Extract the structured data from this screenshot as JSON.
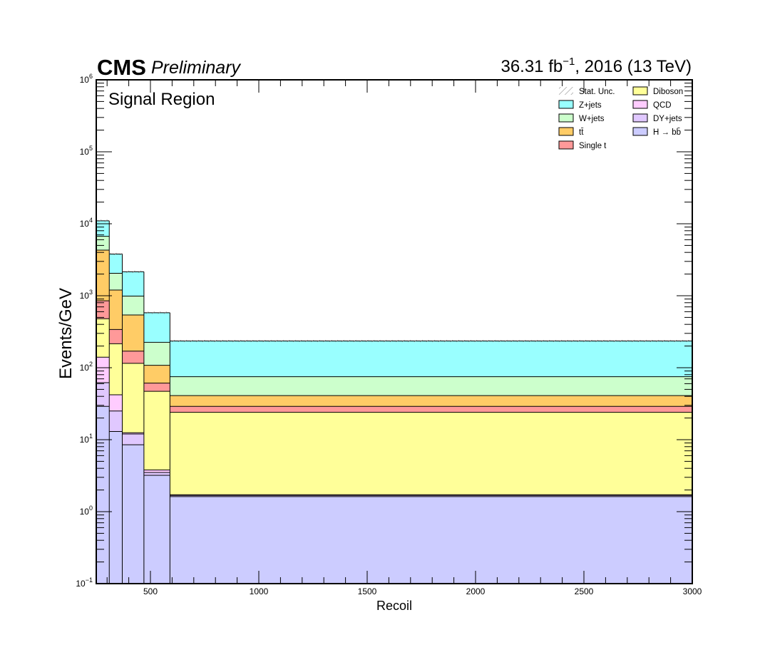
{
  "header": {
    "brand": "CMS",
    "status": "Preliminary",
    "lumi_value": "36.31 fb",
    "lumi_exponent": "−1",
    "lumi_suffix": ", 2016 (13 TeV)"
  },
  "chart_data": {
    "type": "bar",
    "stacked": true,
    "histogram": true,
    "annotation": "Signal Region",
    "xlabel": "Recoil",
    "ylabel": "Events/GeV",
    "xlim": [
      250,
      3000
    ],
    "ylim": [
      0.1,
      1000000
    ],
    "yscale": "log",
    "grid": false,
    "legend_position": "top-right",
    "x_ticks": [
      {
        "value": 500,
        "label": "500"
      },
      {
        "value": 1000,
        "label": "1000"
      },
      {
        "value": 1500,
        "label": "1500"
      },
      {
        "value": 2000,
        "label": "2000"
      },
      {
        "value": 2500,
        "label": "2500"
      },
      {
        "value": 3000,
        "label": "3000"
      }
    ],
    "y_ticks": [
      {
        "value": 0.1,
        "base": "10",
        "exp": "−1"
      },
      {
        "value": 1,
        "base": "10",
        "exp": "0"
      },
      {
        "value": 10,
        "base": "10",
        "exp": "1"
      },
      {
        "value": 100,
        "base": "10",
        "exp": "2"
      },
      {
        "value": 1000,
        "base": "10",
        "exp": "3"
      },
      {
        "value": 10000,
        "base": "10",
        "exp": "4"
      },
      {
        "value": 100000,
        "base": "10",
        "exp": "5"
      },
      {
        "value": 1000000,
        "base": "10",
        "exp": "6"
      }
    ],
    "bin_edges": [
      250,
      310,
      370,
      470,
      590,
      3000
    ],
    "series": [
      {
        "name": "H → bb̄",
        "color": "#ccccff",
        "values": [
          29,
          13,
          8.5,
          3.2,
          1.62
        ]
      },
      {
        "name": "DY+jets",
        "color": "#e0c8ff",
        "values": [
          62,
          25,
          12,
          3.5,
          1.68
        ]
      },
      {
        "name": "QCD",
        "color": "#ffccff",
        "values": [
          140,
          42,
          12.5,
          3.8,
          1.72
        ]
      },
      {
        "name": "Diboson",
        "color": "#ffff99",
        "values": [
          480,
          215,
          115,
          47,
          24
        ]
      },
      {
        "name": "Single t",
        "color": "#ff9999",
        "values": [
          850,
          340,
          170,
          61,
          29
        ]
      },
      {
        "name": "tt̄",
        "color": "#ffcc66",
        "values": [
          4300,
          1200,
          540,
          108,
          41
        ]
      },
      {
        "name": "W+jets",
        "color": "#ccffcc",
        "values": [
          6700,
          2050,
          990,
          225,
          75
        ]
      },
      {
        "name": "Z+jets",
        "color": "#99ffff",
        "values": [
          11000,
          3800,
          2150,
          580,
          235
        ]
      }
    ],
    "legend": [
      {
        "label": "Stat. Unc.",
        "color": "hatched-gray",
        "column": 0
      },
      {
        "label": "Z+jets",
        "color": "#99ffff",
        "column": 0
      },
      {
        "label": "W+jets",
        "color": "#ccffcc",
        "column": 0
      },
      {
        "label": "tt̄",
        "color": "#ffcc66",
        "column": 0
      },
      {
        "label": "Single t",
        "color": "#ff9999",
        "column": 0
      },
      {
        "label": "Diboson",
        "color": "#ffff99",
        "column": 1
      },
      {
        "label": "QCD",
        "color": "#ffccff",
        "column": 1
      },
      {
        "label": "DY+jets",
        "color": "#e0c8ff",
        "column": 1
      },
      {
        "label": "H → bb̄",
        "color": "#ccccff",
        "column": 1
      }
    ]
  }
}
